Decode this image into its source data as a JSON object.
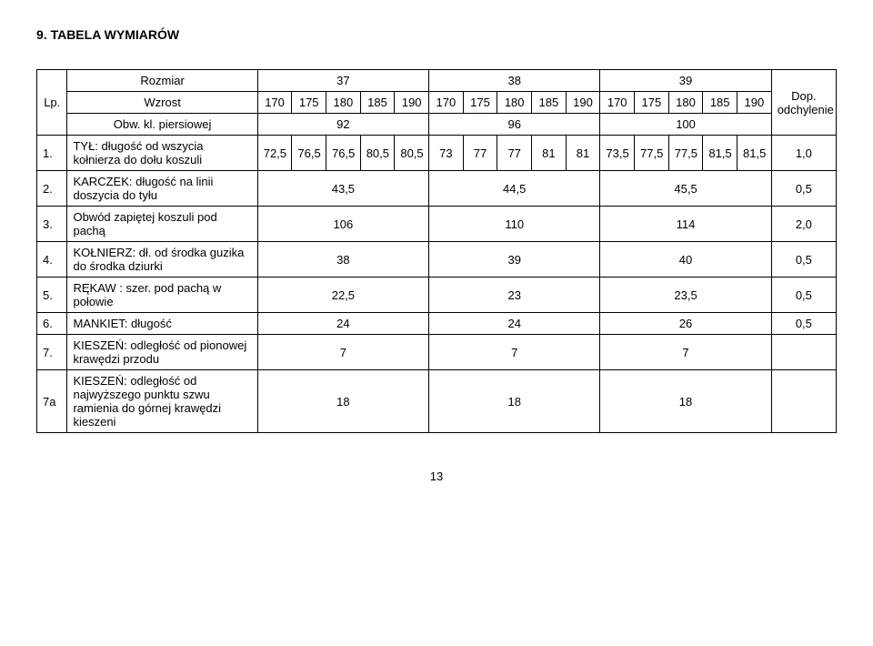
{
  "heading": "9. TABELA WYMIARÓW",
  "header": {
    "lp": "Lp.",
    "rozmiar": "Rozmiar",
    "wzrost": "Wzrost",
    "obw": "Obw. kl. piersiowej",
    "dop": "Dop. odchylenie",
    "sizes": [
      "37",
      "38",
      "39"
    ],
    "wz": [
      "170",
      "175",
      "180",
      "185",
      "190",
      "170",
      "175",
      "180",
      "185",
      "190",
      "170",
      "175",
      "180",
      "185",
      "190"
    ],
    "obw_vals": [
      "92",
      "96",
      "100"
    ]
  },
  "rows": [
    {
      "lp": "1.",
      "label": "TYŁ: długość od wszycia kołnierza do dołu koszuli",
      "cells_mode": "15",
      "cells": [
        "72,5",
        "76,5",
        "76,5",
        "80,5",
        "80,5",
        "73",
        "77",
        "77",
        "81",
        "81",
        "73,5",
        "77,5",
        "77,5",
        "81,5",
        "81,5"
      ],
      "dop": "1,0"
    },
    {
      "lp": "2.",
      "label": "KARCZEK: długość na linii doszycia do tyłu",
      "cells_mode": "3",
      "cells": [
        "43,5",
        "44,5",
        "45,5"
      ],
      "dop": "0,5"
    },
    {
      "lp": "3.",
      "label": "Obwód zapiętej koszuli pod pachą",
      "cells_mode": "3",
      "cells": [
        "106",
        "110",
        "114"
      ],
      "dop": "2,0"
    },
    {
      "lp": "4.",
      "label": "KOŁNIERZ: dł. od środka guzika do środka dziurki",
      "cells_mode": "3",
      "cells": [
        "38",
        "39",
        "40"
      ],
      "dop": "0,5"
    },
    {
      "lp": "5.",
      "label": "RĘKAW : szer. pod pachą w połowie",
      "cells_mode": "3",
      "cells": [
        "22,5",
        "23",
        "23,5"
      ],
      "dop": "0,5"
    },
    {
      "lp": "6.",
      "label": "MANKIET: długość",
      "cells_mode": "3",
      "cells": [
        "24",
        "24",
        "26"
      ],
      "dop": "0,5"
    },
    {
      "lp": "7.",
      "label": "KIESZEŃ: odległość od pionowej krawędzi przodu",
      "cells_mode": "3",
      "cells": [
        "7",
        "7",
        "7"
      ],
      "dop": ""
    },
    {
      "lp": "7a",
      "label": "KIESZEŃ: odległość od najwyższego punktu szwu ramienia do górnej krawędzi kieszeni",
      "cells_mode": "3",
      "cells": [
        "18",
        "18",
        "18"
      ],
      "dop": ""
    }
  ],
  "page_number": "13"
}
